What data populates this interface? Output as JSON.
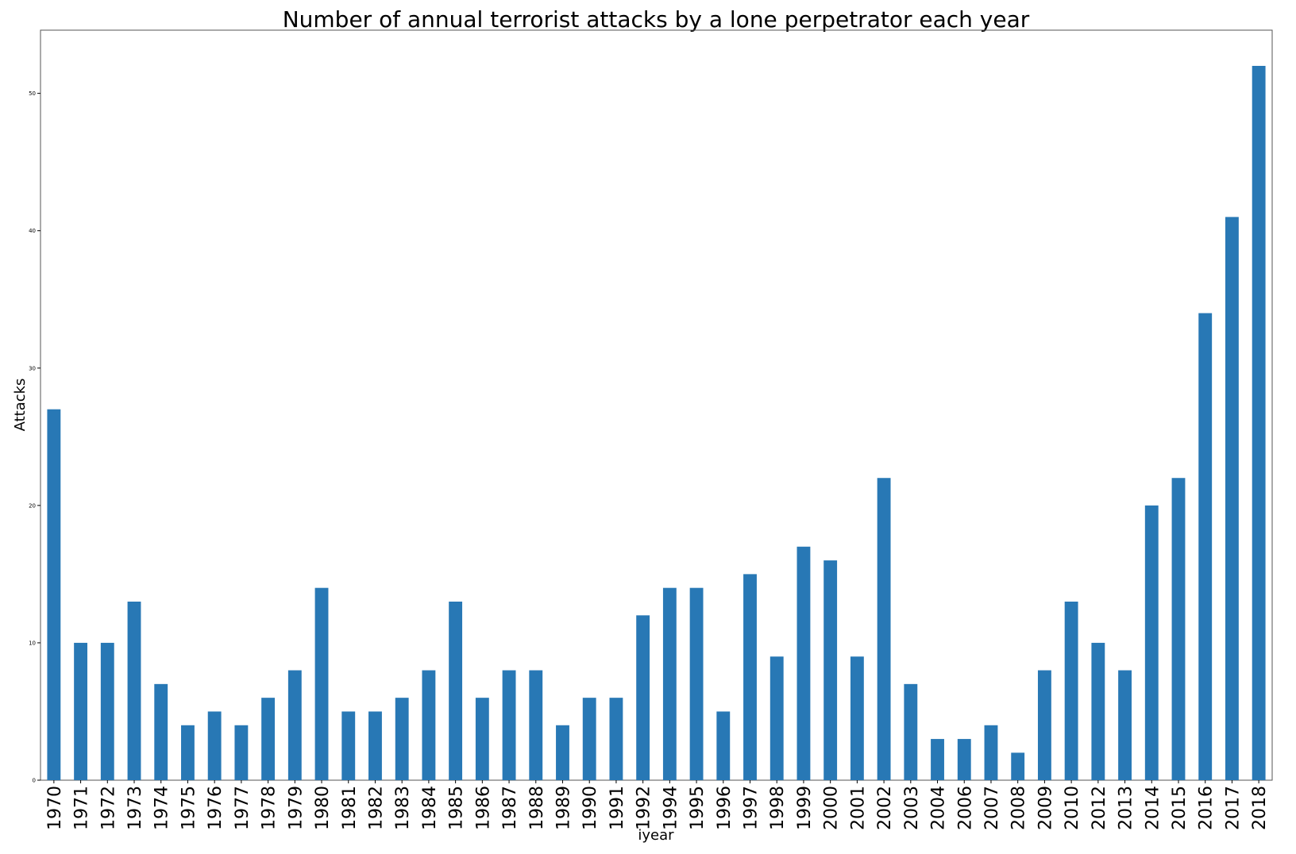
{
  "chart_data": {
    "type": "bar",
    "title": "Number of annual terrorist attacks by a lone perpetrator each year",
    "xlabel": "iyear",
    "ylabel": "Attacks",
    "categories": [
      "1970",
      "1971",
      "1972",
      "1973",
      "1974",
      "1975",
      "1976",
      "1977",
      "1978",
      "1979",
      "1980",
      "1981",
      "1982",
      "1983",
      "1984",
      "1985",
      "1986",
      "1987",
      "1988",
      "1989",
      "1990",
      "1991",
      "1992",
      "1994",
      "1995",
      "1996",
      "1997",
      "1998",
      "1999",
      "2000",
      "2001",
      "2002",
      "2003",
      "2004",
      "2006",
      "2007",
      "2008",
      "2009",
      "2010",
      "2012",
      "2013",
      "2014",
      "2015",
      "2016",
      "2017",
      "2018"
    ],
    "values": [
      27,
      10,
      10,
      13,
      7,
      4,
      5,
      4,
      6,
      8,
      14,
      5,
      5,
      6,
      8,
      13,
      6,
      8,
      8,
      4,
      6,
      6,
      12,
      14,
      14,
      5,
      15,
      9,
      17,
      16,
      9,
      22,
      7,
      3,
      3,
      4,
      2,
      8,
      13,
      10,
      8,
      20,
      22,
      34,
      41,
      52
    ],
    "yticks": [
      0,
      10,
      20,
      30,
      40,
      50
    ],
    "ylim": [
      0,
      54.6
    ],
    "grid": false,
    "legend": "none",
    "bar_color": "#2878b5"
  }
}
